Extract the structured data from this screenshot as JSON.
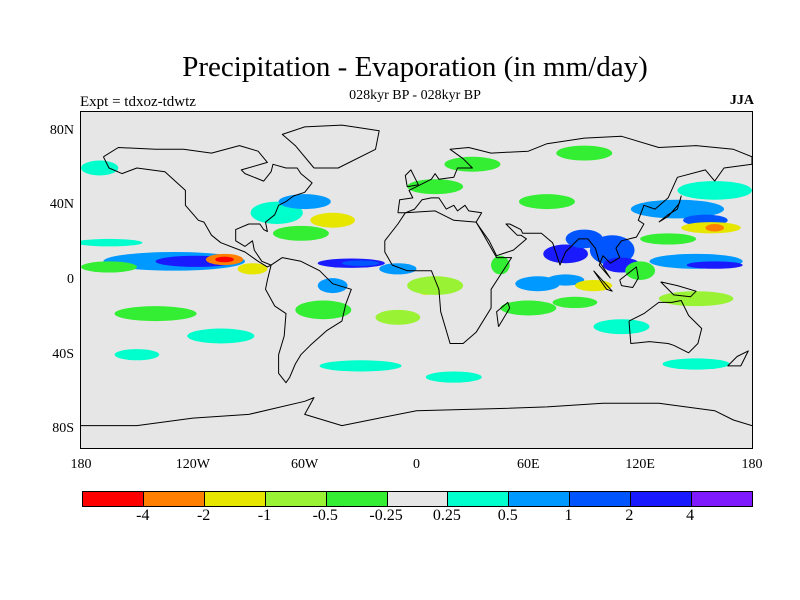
{
  "title": "Precipitation - Evaporation (in mm/day)",
  "subtitle": "028kyr BP - 028kyr BP",
  "left_label": "Expt = tdxoz-tdwtz",
  "right_label": "JJA",
  "lat_ticks": [
    {
      "value": 80,
      "label": "80N"
    },
    {
      "value": 40,
      "label": "40N"
    },
    {
      "value": 0,
      "label": "0"
    },
    {
      "value": -40,
      "label": "40S"
    },
    {
      "value": -80,
      "label": "80S"
    }
  ],
  "lon_ticks": [
    {
      "value": -180,
      "label": "180"
    },
    {
      "value": -120,
      "label": "120W"
    },
    {
      "value": -60,
      "label": "60W"
    },
    {
      "value": 0,
      "label": "0"
    },
    {
      "value": 60,
      "label": "60E"
    },
    {
      "value": 120,
      "label": "120E"
    },
    {
      "value": 180,
      "label": "180"
    }
  ],
  "colorbar": {
    "colors": [
      "#ff0000",
      "#ff8000",
      "#e6e600",
      "#99f233",
      "#33ee33",
      "#e6e6e6",
      "#00ffcc",
      "#0099ff",
      "#0055ff",
      "#1a1aff",
      "#7f1aff"
    ],
    "labels": [
      "-4",
      "-2",
      "-1",
      "-0.5",
      "-0.25",
      "0.25",
      "0.5",
      "1",
      "2",
      "4"
    ]
  },
  "chart_data": {
    "type": "heatmap",
    "projection": "cylindrical equidistant",
    "xlim": [
      -180,
      180
    ],
    "ylim": [
      -90,
      90
    ],
    "background_color": "#e6e6e6",
    "levels": [
      -4,
      -2,
      -1,
      -0.5,
      -0.25,
      0.25,
      0.5,
      1,
      2,
      4
    ],
    "features": [
      {
        "lon": -130,
        "lat": 10,
        "rx": 38,
        "ry": 5,
        "color": "#0099ff"
      },
      {
        "lon": -118,
        "lat": 10,
        "rx": 22,
        "ry": 3,
        "color": "#1a1aff"
      },
      {
        "lon": -103,
        "lat": 11,
        "rx": 10,
        "ry": 3,
        "color": "#ff8000"
      },
      {
        "lon": -103,
        "lat": 11,
        "rx": 5,
        "ry": 1.5,
        "color": "#ff0000"
      },
      {
        "lon": -165,
        "lat": 7,
        "rx": 15,
        "ry": 3,
        "color": "#33ee33"
      },
      {
        "lon": -88,
        "lat": 6,
        "rx": 8,
        "ry": 3,
        "color": "#e6e600"
      },
      {
        "lon": -140,
        "lat": -18,
        "rx": 22,
        "ry": 4,
        "color": "#33ee33"
      },
      {
        "lon": -105,
        "lat": -30,
        "rx": 18,
        "ry": 4,
        "color": "#00ffcc"
      },
      {
        "lon": -75,
        "lat": 36,
        "rx": 14,
        "ry": 6,
        "color": "#00ffcc"
      },
      {
        "lon": -60,
        "lat": 42,
        "rx": 14,
        "ry": 4,
        "color": "#0099ff"
      },
      {
        "lon": -62,
        "lat": 25,
        "rx": 15,
        "ry": 4,
        "color": "#33ee33"
      },
      {
        "lon": -45,
        "lat": 32,
        "rx": 12,
        "ry": 4,
        "color": "#e6e600"
      },
      {
        "lon": -35,
        "lat": 9,
        "rx": 18,
        "ry": 2.5,
        "color": "#1a1aff"
      },
      {
        "lon": -30,
        "lat": 9,
        "rx": 10,
        "ry": 1.5,
        "color": "#0055ff"
      },
      {
        "lon": -10,
        "lat": 6,
        "rx": 10,
        "ry": 3,
        "color": "#0099ff"
      },
      {
        "lon": -45,
        "lat": -3,
        "rx": 8,
        "ry": 4,
        "color": "#0099ff"
      },
      {
        "lon": -50,
        "lat": -16,
        "rx": 15,
        "ry": 5,
        "color": "#33ee33"
      },
      {
        "lon": 5,
        "lat": -4,
        "rx": 5,
        "ry": 4,
        "color": "#e6e600"
      },
      {
        "lon": 10,
        "lat": -3,
        "rx": 15,
        "ry": 5,
        "color": "#99f233"
      },
      {
        "lon": -10,
        "lat": -20,
        "rx": 12,
        "ry": 4,
        "color": "#99f233"
      },
      {
        "lon": -30,
        "lat": -46,
        "rx": 22,
        "ry": 3,
        "color": "#00ffcc"
      },
      {
        "lon": 20,
        "lat": -52,
        "rx": 15,
        "ry": 3,
        "color": "#00ffcc"
      },
      {
        "lon": 10,
        "lat": 50,
        "rx": 15,
        "ry": 4,
        "color": "#33ee33"
      },
      {
        "lon": 45,
        "lat": 8,
        "rx": 5,
        "ry": 5,
        "color": "#33ee33"
      },
      {
        "lon": 30,
        "lat": 62,
        "rx": 15,
        "ry": 4,
        "color": "#33ee33"
      },
      {
        "lon": 90,
        "lat": 68,
        "rx": 15,
        "ry": 4,
        "color": "#33ee33"
      },
      {
        "lon": 70,
        "lat": 42,
        "rx": 15,
        "ry": 4,
        "color": "#33ee33"
      },
      {
        "lon": 80,
        "lat": 14,
        "rx": 12,
        "ry": 5,
        "color": "#1a1aff"
      },
      {
        "lon": 90,
        "lat": 22,
        "rx": 10,
        "ry": 5,
        "color": "#0055ff"
      },
      {
        "lon": 105,
        "lat": 16,
        "rx": 12,
        "ry": 8,
        "color": "#0055ff"
      },
      {
        "lon": 110,
        "lat": 8,
        "rx": 10,
        "ry": 4,
        "color": "#1a1aff"
      },
      {
        "lon": 80,
        "lat": 0,
        "rx": 10,
        "ry": 3,
        "color": "#0099ff"
      },
      {
        "lon": 65,
        "lat": -2,
        "rx": 12,
        "ry": 4,
        "color": "#0099ff"
      },
      {
        "lon": 95,
        "lat": -3,
        "rx": 10,
        "ry": 3,
        "color": "#e6e600"
      },
      {
        "lon": 85,
        "lat": -12,
        "rx": 12,
        "ry": 3,
        "color": "#33ee33"
      },
      {
        "lon": 60,
        "lat": -15,
        "rx": 15,
        "ry": 4,
        "color": "#33ee33"
      },
      {
        "lon": 140,
        "lat": 38,
        "rx": 25,
        "ry": 5,
        "color": "#0099ff"
      },
      {
        "lon": 155,
        "lat": 32,
        "rx": 12,
        "ry": 3,
        "color": "#0055ff"
      },
      {
        "lon": 158,
        "lat": 28,
        "rx": 16,
        "ry": 3,
        "color": "#e6e600"
      },
      {
        "lon": 160,
        "lat": 28,
        "rx": 5,
        "ry": 2,
        "color": "#ff8000"
      },
      {
        "lon": 135,
        "lat": 22,
        "rx": 15,
        "ry": 3,
        "color": "#33ee33"
      },
      {
        "lon": 150,
        "lat": 10,
        "rx": 25,
        "ry": 4,
        "color": "#0099ff"
      },
      {
        "lon": 160,
        "lat": 8,
        "rx": 15,
        "ry": 2,
        "color": "#1a1aff"
      },
      {
        "lon": 160,
        "lat": 48,
        "rx": 20,
        "ry": 5,
        "color": "#00ffcc"
      },
      {
        "lon": 120,
        "lat": 5,
        "rx": 8,
        "ry": 5,
        "color": "#33ee33"
      },
      {
        "lon": 150,
        "lat": -10,
        "rx": 20,
        "ry": 4,
        "color": "#99f233"
      },
      {
        "lon": 110,
        "lat": -25,
        "rx": 15,
        "ry": 4,
        "color": "#00ffcc"
      },
      {
        "lon": 150,
        "lat": -45,
        "rx": 18,
        "ry": 3,
        "color": "#00ffcc"
      },
      {
        "lon": -170,
        "lat": 60,
        "rx": 10,
        "ry": 4,
        "color": "#00ffcc"
      },
      {
        "lon": -165,
        "lat": 20,
        "rx": 18,
        "ry": 2,
        "color": "#00ffcc"
      },
      {
        "lon": -150,
        "lat": -40,
        "rx": 12,
        "ry": 3,
        "color": "#00ffcc"
      }
    ],
    "coastlines": [
      [
        [
          -168,
          66
        ],
        [
          -160,
          71
        ],
        [
          -140,
          70
        ],
        [
          -125,
          70
        ],
        [
          -110,
          68
        ],
        [
          -95,
          72
        ],
        [
          -85,
          69
        ],
        [
          -80,
          63
        ],
        [
          -94,
          59
        ],
        [
          -92,
          57
        ],
        [
          -82,
          53
        ],
        [
          -78,
          58
        ],
        [
          -77,
          62
        ],
        [
          -70,
          60
        ],
        [
          -64,
          60
        ],
        [
          -62,
          57
        ],
        [
          -56,
          52
        ],
        [
          -60,
          47
        ],
        [
          -66,
          45
        ],
        [
          -70,
          42
        ],
        [
          -74,
          40
        ],
        [
          -76,
          35
        ],
        [
          -81,
          31
        ],
        [
          -80,
          26
        ],
        [
          -82,
          27
        ],
        [
          -84,
          30
        ],
        [
          -90,
          30
        ],
        [
          -97,
          27
        ],
        [
          -97,
          21
        ],
        [
          -92,
          18
        ],
        [
          -88,
          21
        ],
        [
          -87,
          16
        ],
        [
          -83,
          10
        ],
        [
          -78,
          8
        ],
        [
          -80,
          7
        ],
        [
          -85,
          10
        ],
        [
          -92,
          15
        ],
        [
          -105,
          20
        ],
        [
          -110,
          24
        ],
        [
          -114,
          31
        ],
        [
          -117,
          32
        ],
        [
          -124,
          40
        ],
        [
          -124,
          48
        ],
        [
          -135,
          58
        ],
        [
          -150,
          60
        ],
        [
          -158,
          57
        ],
        [
          -165,
          60
        ],
        [
          -168,
          66
        ]
      ],
      [
        [
          -78,
          8
        ],
        [
          -72,
          12
        ],
        [
          -62,
          10
        ],
        [
          -52,
          5
        ],
        [
          -45,
          -2
        ],
        [
          -35,
          -5
        ],
        [
          -38,
          -13
        ],
        [
          -40,
          -22
        ],
        [
          -48,
          -27
        ],
        [
          -57,
          -35
        ],
        [
          -62,
          -40
        ],
        [
          -65,
          -45
        ],
        [
          -68,
          -52
        ],
        [
          -70,
          -55
        ],
        [
          -74,
          -50
        ],
        [
          -74,
          -40
        ],
        [
          -71,
          -30
        ],
        [
          -70,
          -18
        ],
        [
          -76,
          -14
        ],
        [
          -81,
          -5
        ],
        [
          -80,
          0
        ],
        [
          -78,
          8
        ]
      ],
      [
        [
          -17,
          21
        ],
        [
          -17,
          15
        ],
        [
          -13,
          8
        ],
        [
          -5,
          5
        ],
        [
          8,
          5
        ],
        [
          10,
          0
        ],
        [
          12,
          -5
        ],
        [
          13,
          -17
        ],
        [
          18,
          -34
        ],
        [
          25,
          -34
        ],
        [
          32,
          -28
        ],
        [
          40,
          -15
        ],
        [
          40,
          -5
        ],
        [
          51,
          12
        ],
        [
          43,
          12
        ],
        [
          35,
          26
        ],
        [
          32,
          31
        ],
        [
          20,
          32
        ],
        [
          10,
          37
        ],
        [
          -6,
          36
        ],
        [
          -10,
          30
        ],
        [
          -17,
          21
        ]
      ],
      [
        [
          -10,
          36
        ],
        [
          -9,
          43
        ],
        [
          -2,
          44
        ],
        [
          -4,
          48
        ],
        [
          2,
          51
        ],
        [
          8,
          54
        ],
        [
          10,
          57
        ],
        [
          12,
          54
        ],
        [
          20,
          55
        ],
        [
          22,
          60
        ],
        [
          30,
          60
        ],
        [
          25,
          65
        ],
        [
          18,
          70
        ],
        [
          28,
          71
        ],
        [
          40,
          68
        ],
        [
          60,
          69
        ],
        [
          70,
          73
        ],
        [
          90,
          76
        ],
        [
          110,
          77
        ],
        [
          130,
          71
        ],
        [
          150,
          72
        ],
        [
          170,
          70
        ],
        [
          180,
          66
        ],
        [
          180,
          62
        ],
        [
          165,
          60
        ],
        [
          160,
          53
        ],
        [
          155,
          59
        ],
        [
          140,
          55
        ],
        [
          135,
          44
        ],
        [
          128,
          38
        ],
        [
          122,
          40
        ],
        [
          119,
          32
        ],
        [
          122,
          30
        ],
        [
          118,
          23
        ],
        [
          110,
          21
        ],
        [
          107,
          17
        ],
        [
          109,
          12
        ],
        [
          104,
          9
        ],
        [
          100,
          13
        ],
        [
          98,
          8
        ],
        [
          104,
          1
        ],
        [
          98,
          10
        ],
        [
          96,
          17
        ],
        [
          92,
          22
        ],
        [
          87,
          22
        ],
        [
          80,
          15
        ],
        [
          77,
          8
        ],
        [
          73,
          20
        ],
        [
          67,
          25
        ],
        [
          57,
          25
        ],
        [
          56,
          27
        ],
        [
          50,
          30
        ],
        [
          48,
          30
        ],
        [
          54,
          24
        ],
        [
          56,
          24
        ],
        [
          59,
          22
        ],
        [
          52,
          16
        ],
        [
          43,
          13
        ],
        [
          39,
          21
        ],
        [
          34,
          28
        ],
        [
          32,
          31
        ],
        [
          35,
          36
        ],
        [
          28,
          37
        ],
        [
          26,
          40
        ],
        [
          22,
          37
        ],
        [
          20,
          40
        ],
        [
          16,
          38
        ],
        [
          12,
          44
        ],
        [
          8,
          44
        ],
        [
          3,
          43
        ],
        [
          -1,
          38
        ],
        [
          -6,
          36
        ],
        [
          -10,
          36
        ]
      ],
      [
        [
          114,
          -22
        ],
        [
          122,
          -18
        ],
        [
          130,
          -12
        ],
        [
          137,
          -12
        ],
        [
          142,
          -11
        ],
        [
          146,
          -19
        ],
        [
          153,
          -26
        ],
        [
          151,
          -34
        ],
        [
          146,
          -39
        ],
        [
          138,
          -35
        ],
        [
          135,
          -34
        ],
        [
          125,
          -33
        ],
        [
          115,
          -34
        ],
        [
          114,
          -22
        ]
      ],
      [
        [
          -55,
          60
        ],
        [
          -42,
          60
        ],
        [
          -22,
          70
        ],
        [
          -20,
          80
        ],
        [
          -40,
          83
        ],
        [
          -60,
          82
        ],
        [
          -72,
          78
        ],
        [
          -65,
          72
        ],
        [
          -55,
          60
        ]
      ],
      [
        [
          95,
          5
        ],
        [
          105,
          -6
        ],
        [
          102,
          -5
        ],
        [
          95,
          5
        ]
      ],
      [
        [
          109,
          0
        ],
        [
          118,
          7
        ],
        [
          119,
          1
        ],
        [
          116,
          -4
        ],
        [
          110,
          -3
        ],
        [
          109,
          0
        ]
      ],
      [
        [
          131,
          -1
        ],
        [
          140,
          -3
        ],
        [
          150,
          -6
        ],
        [
          147,
          -9
        ],
        [
          138,
          -8
        ],
        [
          131,
          -1
        ]
      ],
      [
        [
          130,
          31
        ],
        [
          135,
          34
        ],
        [
          141,
          41
        ],
        [
          142,
          45
        ],
        [
          140,
          38
        ],
        [
          135,
          35
        ],
        [
          130,
          31
        ]
      ],
      [
        [
          -5,
          50
        ],
        [
          1,
          51
        ],
        [
          -1,
          55
        ],
        [
          -3,
          59
        ],
        [
          -6,
          56
        ],
        [
          -5,
          50
        ]
      ],
      [
        [
          44,
          -25
        ],
        [
          50,
          -15
        ],
        [
          49,
          -12
        ],
        [
          43,
          -17
        ],
        [
          44,
          -25
        ]
      ],
      [
        [
          172,
          -41
        ],
        [
          178,
          -38
        ],
        [
          174,
          -46
        ],
        [
          167,
          -46
        ],
        [
          172,
          -41
        ]
      ],
      [
        [
          -180,
          -78
        ],
        [
          -150,
          -78
        ],
        [
          -120,
          -74
        ],
        [
          -90,
          -72
        ],
        [
          -60,
          -65
        ],
        [
          -55,
          -63
        ],
        [
          -60,
          -72
        ],
        [
          -40,
          -78
        ],
        [
          -20,
          -74
        ],
        [
          0,
          -70
        ],
        [
          40,
          -69
        ],
        [
          70,
          -68
        ],
        [
          100,
          -66
        ],
        [
          130,
          -66
        ],
        [
          160,
          -70
        ],
        [
          170,
          -75
        ],
        [
          180,
          -78
        ]
      ]
    ]
  }
}
